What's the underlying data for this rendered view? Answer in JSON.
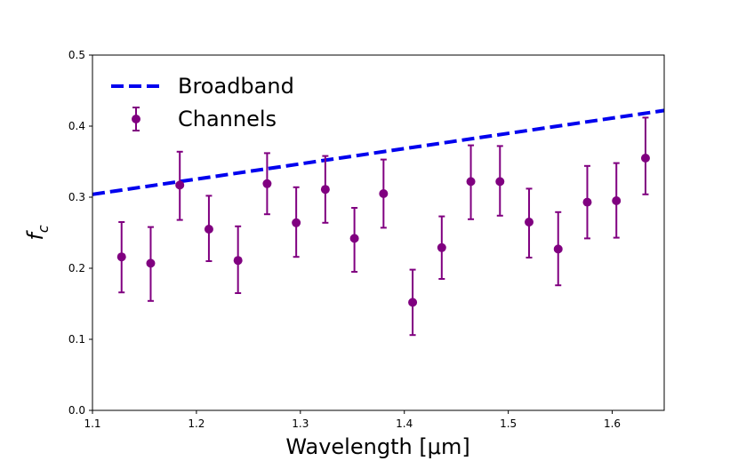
{
  "chart_data": {
    "type": "scatter",
    "title": "",
    "xlabel": "Wavelength [μm]",
    "ylabel": "f_c",
    "xlim": [
      1.1,
      1.65
    ],
    "ylim": [
      0.0,
      0.5
    ],
    "xticks": [
      1.1,
      1.2,
      1.3,
      1.4,
      1.5,
      1.6
    ],
    "xtick_labels": [
      "1.1",
      "1.2",
      "1.3",
      "1.4",
      "1.5",
      "1.6"
    ],
    "yticks": [
      0.0,
      0.1,
      0.2,
      0.3,
      0.4,
      0.5
    ],
    "ytick_labels": [
      "0.0",
      "0.1",
      "0.2",
      "0.3",
      "0.4",
      "0.5"
    ],
    "grid": false,
    "legend_position": "top-left",
    "series": [
      {
        "name": "Broadband",
        "kind": "line",
        "style": "dashed",
        "color": "#0000ee",
        "x": [
          1.1,
          1.65
        ],
        "y": [
          0.304,
          0.422
        ]
      },
      {
        "name": "Channels",
        "kind": "errorbar",
        "color": "#800080",
        "x": [
          1.128,
          1.156,
          1.184,
          1.212,
          1.24,
          1.268,
          1.296,
          1.324,
          1.352,
          1.38,
          1.408,
          1.436,
          1.464,
          1.492,
          1.52,
          1.548,
          1.576,
          1.604,
          1.632
        ],
        "y": [
          0.216,
          0.207,
          0.317,
          0.255,
          0.211,
          0.319,
          0.264,
          0.311,
          0.242,
          0.305,
          0.152,
          0.229,
          0.322,
          0.322,
          0.265,
          0.227,
          0.293,
          0.295,
          0.355
        ],
        "yerr_low": [
          0.05,
          0.053,
          0.049,
          0.045,
          0.046,
          0.043,
          0.048,
          0.047,
          0.047,
          0.048,
          0.046,
          0.044,
          0.053,
          0.048,
          0.05,
          0.051,
          0.051,
          0.052,
          0.051
        ],
        "yerr_high": [
          0.049,
          0.051,
          0.047,
          0.047,
          0.048,
          0.043,
          0.05,
          0.047,
          0.043,
          0.048,
          0.046,
          0.044,
          0.051,
          0.05,
          0.047,
          0.052,
          0.051,
          0.053,
          0.057
        ]
      }
    ]
  }
}
